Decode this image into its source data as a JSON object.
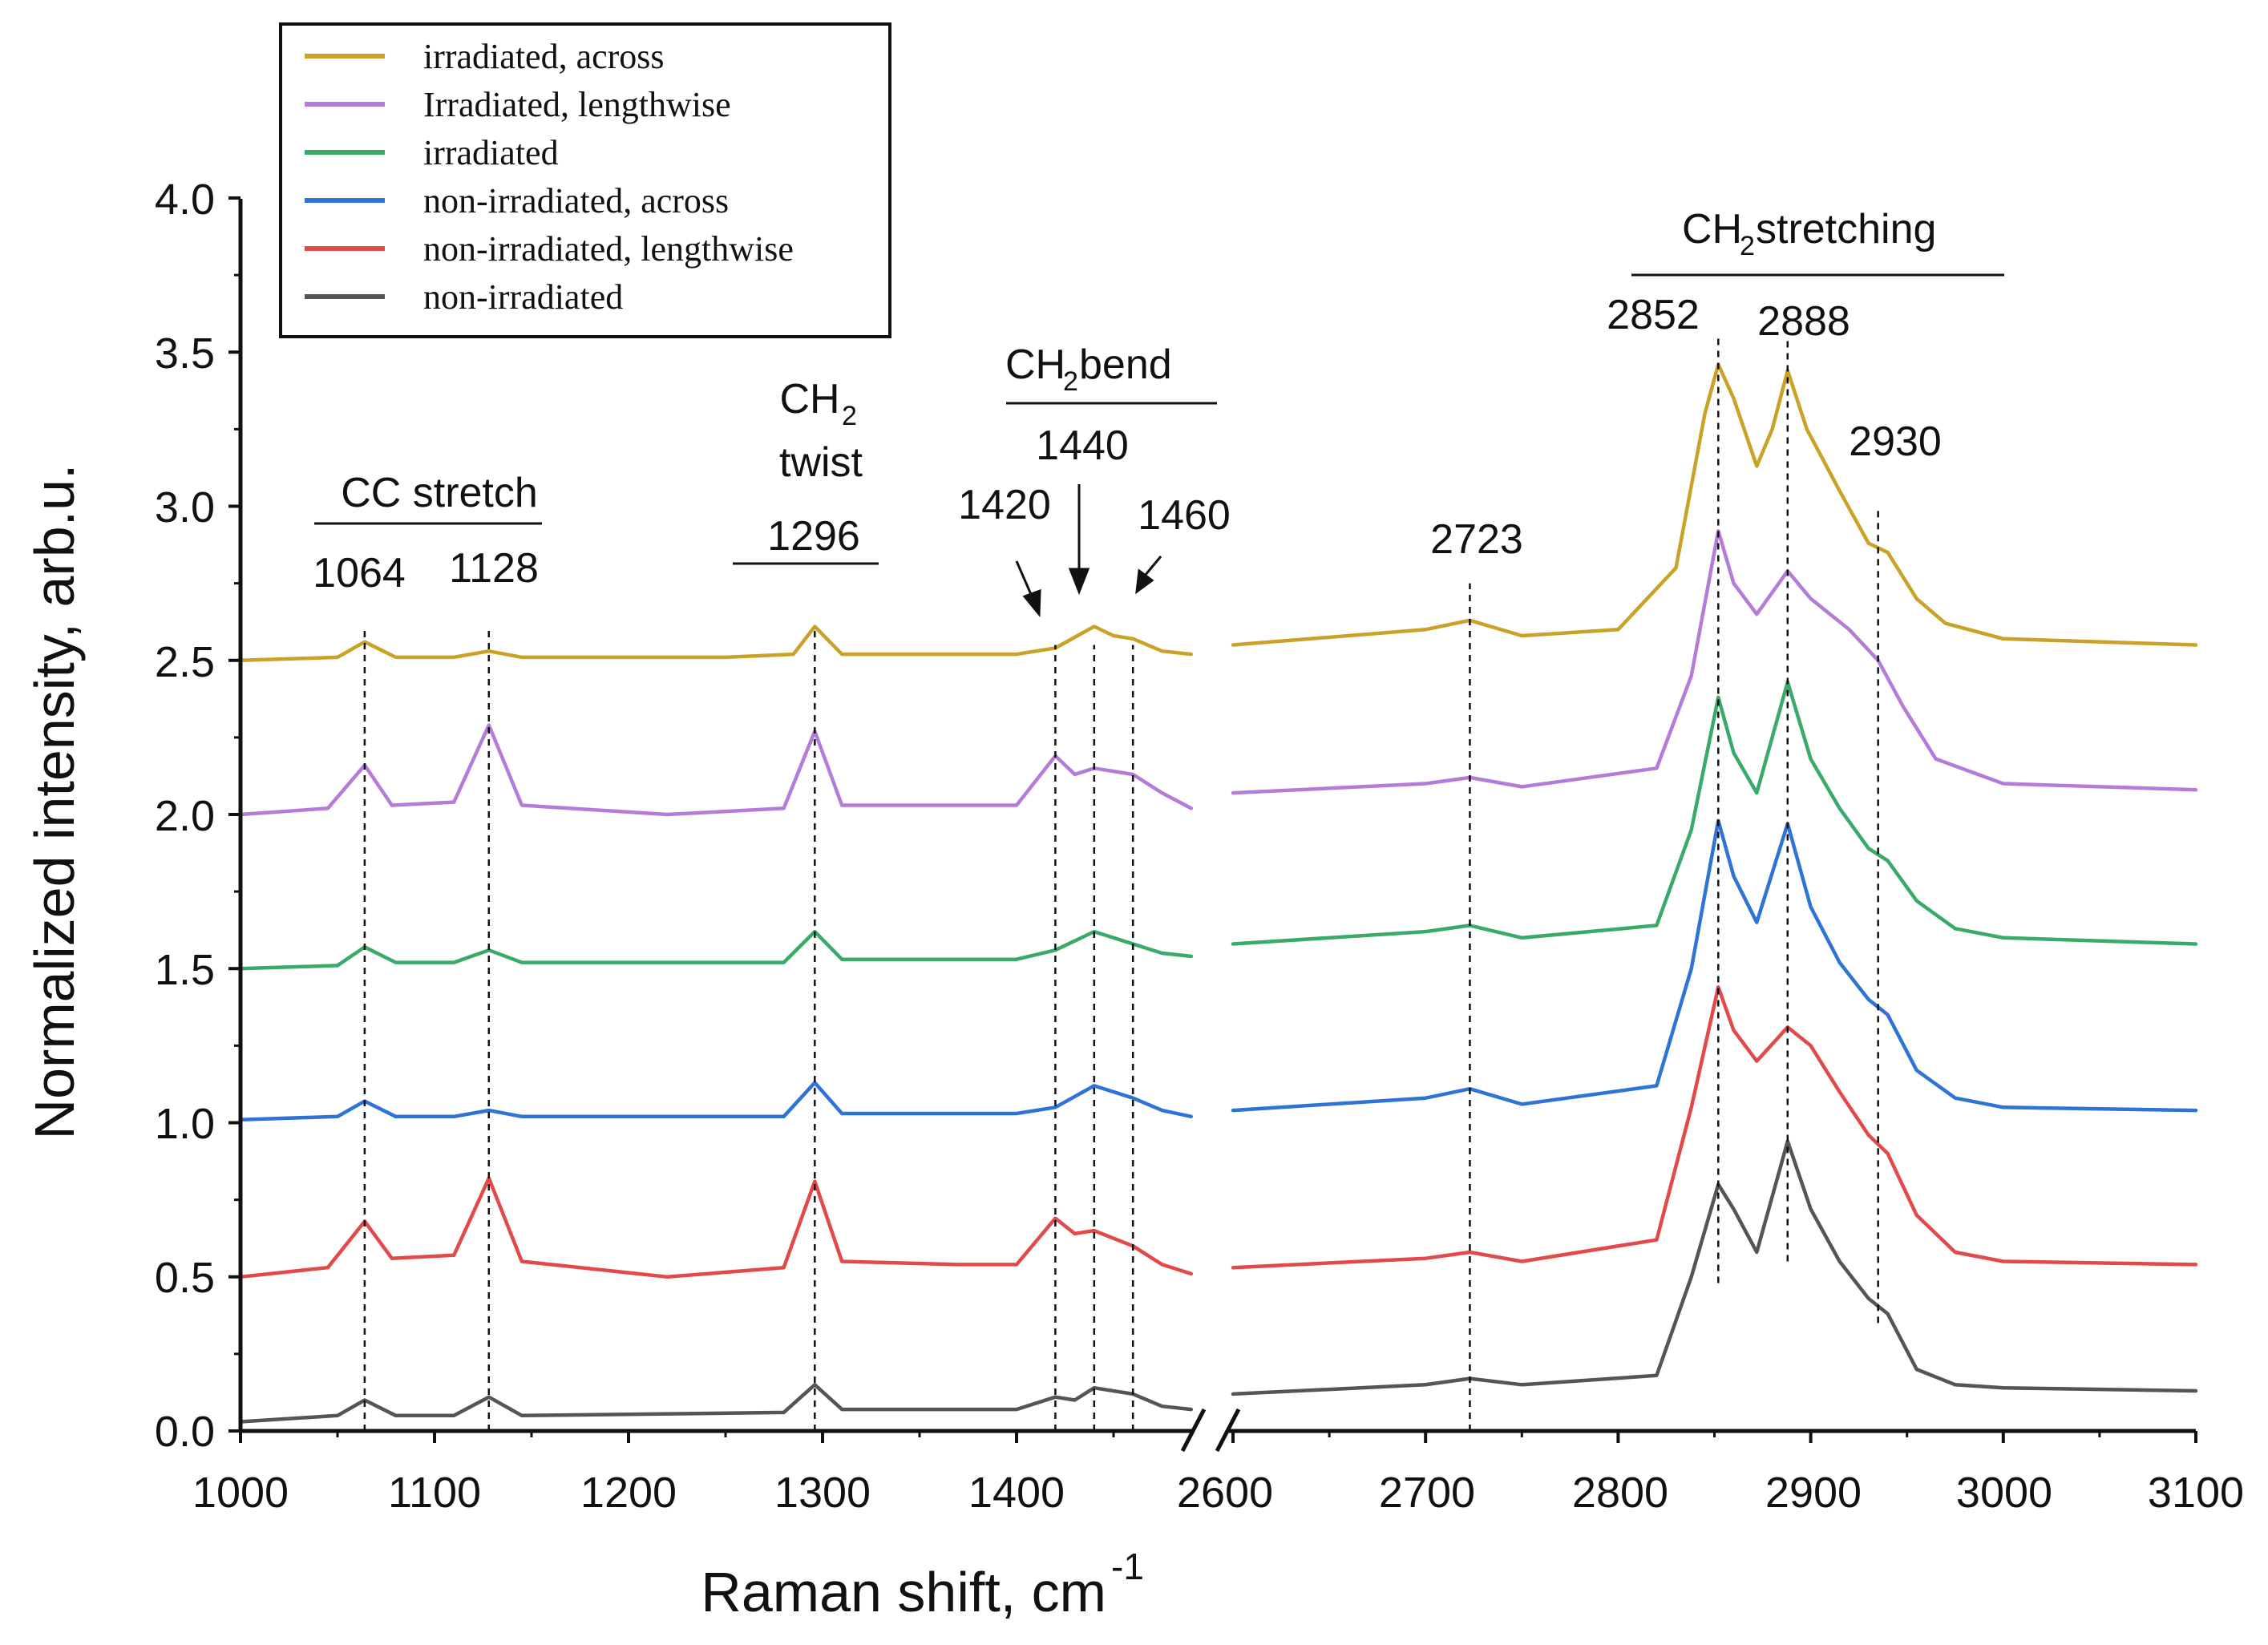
{
  "chart_data": {
    "type": "line",
    "title": "",
    "xlabel": "Raman shift, cm",
    "xlabel_superscript": "-1",
    "ylabel": "Normalized intensity, arb.u.",
    "ylim": [
      0,
      4.0
    ],
    "x_segments": [
      [
        1000,
        1490
      ],
      [
        2600,
        3100
      ]
    ],
    "x_break": true,
    "x_ticks": [
      "1000",
      "1100",
      "1200",
      "1300",
      "1400",
      "2600",
      "2700",
      "2800",
      "2900",
      "3000",
      "3100"
    ],
    "y_ticks": [
      "0.0",
      "0.5",
      "1.0",
      "1.5",
      "2.0",
      "2.5",
      "3.0",
      "3.5",
      "4.0"
    ],
    "grid": false,
    "legend_position": "top-left",
    "series": [
      {
        "name": "irradiated, across",
        "color": "#c9a227",
        "segment1": [
          [
            1000,
            2.5
          ],
          [
            1050,
            2.51
          ],
          [
            1064,
            2.56
          ],
          [
            1080,
            2.51
          ],
          [
            1110,
            2.51
          ],
          [
            1128,
            2.53
          ],
          [
            1145,
            2.51
          ],
          [
            1250,
            2.51
          ],
          [
            1285,
            2.52
          ],
          [
            1296,
            2.61
          ],
          [
            1310,
            2.52
          ],
          [
            1400,
            2.52
          ],
          [
            1420,
            2.54
          ],
          [
            1440,
            2.61
          ],
          [
            1450,
            2.58
          ],
          [
            1460,
            2.57
          ],
          [
            1475,
            2.53
          ],
          [
            1490,
            2.52
          ]
        ],
        "segment2": [
          [
            2600,
            2.55
          ],
          [
            2700,
            2.6
          ],
          [
            2723,
            2.63
          ],
          [
            2750,
            2.58
          ],
          [
            2800,
            2.6
          ],
          [
            2830,
            2.8
          ],
          [
            2845,
            3.3
          ],
          [
            2852,
            3.46
          ],
          [
            2860,
            3.35
          ],
          [
            2872,
            3.13
          ],
          [
            2880,
            3.25
          ],
          [
            2888,
            3.44
          ],
          [
            2898,
            3.25
          ],
          [
            2915,
            3.05
          ],
          [
            2930,
            2.88
          ],
          [
            2940,
            2.85
          ],
          [
            2955,
            2.7
          ],
          [
            2970,
            2.62
          ],
          [
            3000,
            2.57
          ],
          [
            3100,
            2.55
          ]
        ]
      },
      {
        "name": "Irradiated, lengthwise",
        "color": "#b57bd9",
        "segment1": [
          [
            1000,
            2.0
          ],
          [
            1045,
            2.02
          ],
          [
            1064,
            2.16
          ],
          [
            1078,
            2.03
          ],
          [
            1110,
            2.04
          ],
          [
            1128,
            2.29
          ],
          [
            1145,
            2.03
          ],
          [
            1220,
            2.0
          ],
          [
            1280,
            2.02
          ],
          [
            1296,
            2.27
          ],
          [
            1310,
            2.03
          ],
          [
            1400,
            2.03
          ],
          [
            1420,
            2.19
          ],
          [
            1430,
            2.13
          ],
          [
            1440,
            2.15
          ],
          [
            1460,
            2.13
          ],
          [
            1475,
            2.07
          ],
          [
            1490,
            2.02
          ]
        ],
        "segment2": [
          [
            2600,
            2.07
          ],
          [
            2700,
            2.1
          ],
          [
            2723,
            2.12
          ],
          [
            2750,
            2.09
          ],
          [
            2820,
            2.15
          ],
          [
            2838,
            2.45
          ],
          [
            2852,
            2.92
          ],
          [
            2860,
            2.75
          ],
          [
            2872,
            2.65
          ],
          [
            2888,
            2.79
          ],
          [
            2900,
            2.7
          ],
          [
            2920,
            2.6
          ],
          [
            2935,
            2.5
          ],
          [
            2948,
            2.35
          ],
          [
            2965,
            2.18
          ],
          [
            3000,
            2.1
          ],
          [
            3100,
            2.08
          ]
        ]
      },
      {
        "name": "irradiated",
        "color": "#3aaa6a",
        "segment1": [
          [
            1000,
            1.5
          ],
          [
            1050,
            1.51
          ],
          [
            1064,
            1.57
          ],
          [
            1080,
            1.52
          ],
          [
            1110,
            1.52
          ],
          [
            1128,
            1.56
          ],
          [
            1145,
            1.52
          ],
          [
            1280,
            1.52
          ],
          [
            1296,
            1.62
          ],
          [
            1310,
            1.53
          ],
          [
            1400,
            1.53
          ],
          [
            1420,
            1.56
          ],
          [
            1440,
            1.62
          ],
          [
            1460,
            1.58
          ],
          [
            1475,
            1.55
          ],
          [
            1490,
            1.54
          ]
        ],
        "segment2": [
          [
            2600,
            1.58
          ],
          [
            2700,
            1.62
          ],
          [
            2723,
            1.64
          ],
          [
            2750,
            1.6
          ],
          [
            2820,
            1.64
          ],
          [
            2838,
            1.95
          ],
          [
            2852,
            2.38
          ],
          [
            2860,
            2.2
          ],
          [
            2872,
            2.07
          ],
          [
            2888,
            2.43
          ],
          [
            2900,
            2.18
          ],
          [
            2915,
            2.02
          ],
          [
            2930,
            1.89
          ],
          [
            2940,
            1.85
          ],
          [
            2955,
            1.72
          ],
          [
            2975,
            1.63
          ],
          [
            3000,
            1.6
          ],
          [
            3100,
            1.58
          ]
        ]
      },
      {
        "name": "non-irradiated, across",
        "color": "#2e73d6",
        "segment1": [
          [
            1000,
            1.01
          ],
          [
            1050,
            1.02
          ],
          [
            1064,
            1.07
          ],
          [
            1080,
            1.02
          ],
          [
            1110,
            1.02
          ],
          [
            1128,
            1.04
          ],
          [
            1145,
            1.02
          ],
          [
            1280,
            1.02
          ],
          [
            1296,
            1.13
          ],
          [
            1310,
            1.03
          ],
          [
            1400,
            1.03
          ],
          [
            1420,
            1.05
          ],
          [
            1440,
            1.12
          ],
          [
            1460,
            1.08
          ],
          [
            1475,
            1.04
          ],
          [
            1490,
            1.02
          ]
        ],
        "segment2": [
          [
            2600,
            1.04
          ],
          [
            2700,
            1.08
          ],
          [
            2723,
            1.11
          ],
          [
            2750,
            1.06
          ],
          [
            2820,
            1.12
          ],
          [
            2838,
            1.5
          ],
          [
            2852,
            1.98
          ],
          [
            2860,
            1.8
          ],
          [
            2872,
            1.65
          ],
          [
            2888,
            1.97
          ],
          [
            2900,
            1.7
          ],
          [
            2915,
            1.52
          ],
          [
            2930,
            1.4
          ],
          [
            2940,
            1.35
          ],
          [
            2955,
            1.17
          ],
          [
            2975,
            1.08
          ],
          [
            3000,
            1.05
          ],
          [
            3100,
            1.04
          ]
        ]
      },
      {
        "name": "non-irradiated, lengthwise",
        "color": "#e24a4a",
        "segment1": [
          [
            1000,
            0.5
          ],
          [
            1045,
            0.53
          ],
          [
            1064,
            0.68
          ],
          [
            1078,
            0.56
          ],
          [
            1110,
            0.57
          ],
          [
            1128,
            0.82
          ],
          [
            1145,
            0.55
          ],
          [
            1220,
            0.5
          ],
          [
            1280,
            0.53
          ],
          [
            1296,
            0.81
          ],
          [
            1310,
            0.55
          ],
          [
            1370,
            0.54
          ],
          [
            1400,
            0.54
          ],
          [
            1420,
            0.69
          ],
          [
            1430,
            0.64
          ],
          [
            1440,
            0.65
          ],
          [
            1460,
            0.6
          ],
          [
            1475,
            0.54
          ],
          [
            1490,
            0.51
          ]
        ],
        "segment2": [
          [
            2600,
            0.53
          ],
          [
            2700,
            0.56
          ],
          [
            2723,
            0.58
          ],
          [
            2750,
            0.55
          ],
          [
            2820,
            0.62
          ],
          [
            2838,
            1.05
          ],
          [
            2852,
            1.44
          ],
          [
            2860,
            1.3
          ],
          [
            2872,
            1.2
          ],
          [
            2888,
            1.31
          ],
          [
            2900,
            1.25
          ],
          [
            2915,
            1.1
          ],
          [
            2930,
            0.96
          ],
          [
            2940,
            0.9
          ],
          [
            2955,
            0.7
          ],
          [
            2975,
            0.58
          ],
          [
            3000,
            0.55
          ],
          [
            3100,
            0.54
          ]
        ]
      },
      {
        "name": "non-irradiated",
        "color": "#555555",
        "segment1": [
          [
            1000,
            0.03
          ],
          [
            1050,
            0.05
          ],
          [
            1064,
            0.1
          ],
          [
            1080,
            0.05
          ],
          [
            1110,
            0.05
          ],
          [
            1128,
            0.11
          ],
          [
            1145,
            0.05
          ],
          [
            1280,
            0.06
          ],
          [
            1296,
            0.15
          ],
          [
            1310,
            0.07
          ],
          [
            1400,
            0.07
          ],
          [
            1420,
            0.11
          ],
          [
            1430,
            0.1
          ],
          [
            1440,
            0.14
          ],
          [
            1460,
            0.12
          ],
          [
            1475,
            0.08
          ],
          [
            1490,
            0.07
          ]
        ],
        "segment2": [
          [
            2600,
            0.12
          ],
          [
            2700,
            0.15
          ],
          [
            2723,
            0.17
          ],
          [
            2750,
            0.15
          ],
          [
            2820,
            0.18
          ],
          [
            2838,
            0.5
          ],
          [
            2852,
            0.8
          ],
          [
            2860,
            0.72
          ],
          [
            2872,
            0.58
          ],
          [
            2888,
            0.94
          ],
          [
            2900,
            0.72
          ],
          [
            2915,
            0.55
          ],
          [
            2930,
            0.43
          ],
          [
            2940,
            0.38
          ],
          [
            2955,
            0.2
          ],
          [
            2975,
            0.15
          ],
          [
            3000,
            0.14
          ],
          [
            3100,
            0.13
          ]
        ]
      }
    ],
    "peak_lines": [
      {
        "x": 1064,
        "y0": 0,
        "y1": 2.6
      },
      {
        "x": 1128,
        "y0": 0,
        "y1": 2.6
      },
      {
        "x": 1296,
        "y0": 0,
        "y1": 2.6
      },
      {
        "x": 1420,
        "y0": 0,
        "y1": 2.55
      },
      {
        "x": 1440,
        "y0": 0,
        "y1": 2.55
      },
      {
        "x": 1460,
        "y0": 0,
        "y1": 2.55
      },
      {
        "x": 2723,
        "y0": 0,
        "y1": 2.75
      },
      {
        "x": 2852,
        "y0": 0.48,
        "y1": 3.55
      },
      {
        "x": 2888,
        "y0": 0.55,
        "y1": 3.55
      },
      {
        "x": 2935,
        "y0": 0.35,
        "y1": 3.0
      }
    ],
    "annotations": {
      "cc_stretch": "CC stretch",
      "p1064": "1064",
      "p1128": "1128",
      "ch2_twist_a": "CH",
      "ch2_twist_b": "twist",
      "p1296": "1296",
      "ch2_bend": "CH",
      "ch2_bend_b": " bend",
      "p1420": "1420",
      "p1440": "1440",
      "p1460": "1460",
      "p2723": "2723",
      "ch2_stretching": "CH",
      "ch2_stretching_b": " stretching",
      "p2852": "2852",
      "p2888": "2888",
      "p2930": "2930",
      "sub2": "2"
    }
  }
}
